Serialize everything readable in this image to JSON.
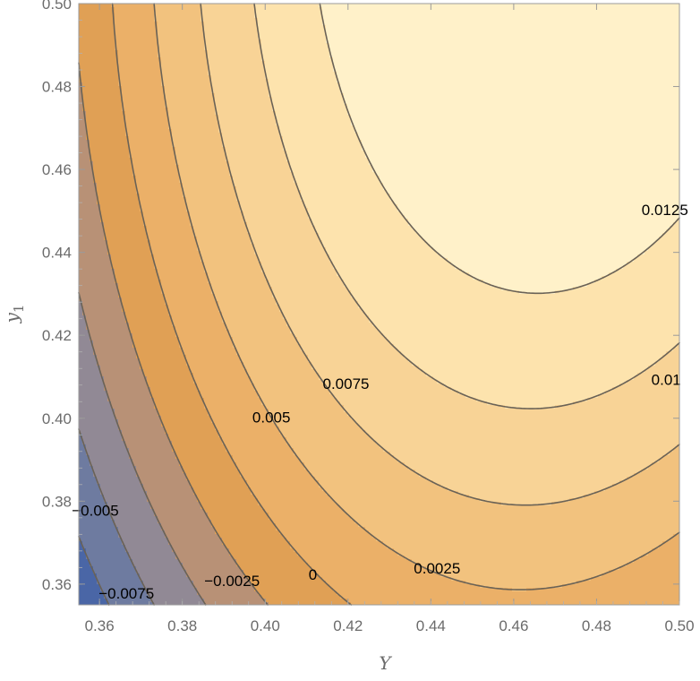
{
  "chart_data": {
    "type": "contour",
    "xlabel": "Y",
    "ylabel_base": "y",
    "ylabel_sub": "1",
    "xlim": [
      0.355,
      0.5
    ],
    "ylim": [
      0.355,
      0.5
    ],
    "x_ticks": [
      {
        "value": 0.36,
        "label": "0.36"
      },
      {
        "value": 0.38,
        "label": "0.38"
      },
      {
        "value": 0.4,
        "label": "0.40"
      },
      {
        "value": 0.42,
        "label": "0.42"
      },
      {
        "value": 0.44,
        "label": "0.44"
      },
      {
        "value": 0.46,
        "label": "0.46"
      },
      {
        "value": 0.48,
        "label": "0.48"
      },
      {
        "value": 0.5,
        "label": "0.50"
      }
    ],
    "y_ticks": [
      {
        "value": 0.36,
        "label": "0.36"
      },
      {
        "value": 0.38,
        "label": "0.38"
      },
      {
        "value": 0.4,
        "label": "0.40"
      },
      {
        "value": 0.42,
        "label": "0.42"
      },
      {
        "value": 0.44,
        "label": "0.44"
      },
      {
        "value": 0.46,
        "label": "0.46"
      },
      {
        "value": 0.48,
        "label": "0.48"
      },
      {
        "value": 0.5,
        "label": "0.50"
      }
    ],
    "contour_levels": [
      {
        "value": -0.0075,
        "label": "−0.0075",
        "label_at": [
          0.3665,
          0.3575
        ],
        "band_color": "#4a66a6"
      },
      {
        "value": -0.005,
        "label": "−0.005",
        "label_at": [
          0.359,
          0.3775
        ],
        "band_color": "#6e7ba0"
      },
      {
        "value": -0.0025,
        "label": "−0.0025",
        "label_at": [
          0.392,
          0.3605
        ],
        "band_color": "#918995"
      },
      {
        "value": 0,
        "label": "0",
        "label_at": [
          0.4115,
          0.362
        ],
        "band_color": "#b89176"
      },
      {
        "value": 0.0025,
        "label": "0.0025",
        "label_at": [
          0.4415,
          0.3635
        ],
        "band_color": "#e0a055"
      },
      {
        "value": 0.005,
        "label": "0.005",
        "label_at": [
          0.4015,
          0.4
        ],
        "band_color": "#ebb068"
      },
      {
        "value": 0.0075,
        "label": "0.0075",
        "label_at": [
          0.4195,
          0.408
        ],
        "band_color": "#f2c27e"
      },
      {
        "value": 0.01,
        "label": "0.01",
        "label_at": [
          0.4968,
          0.409
        ],
        "band_color": "#f8d396"
      },
      {
        "value": 0.0125,
        "label": "0.0125",
        "label_at": [
          0.4965,
          0.45
        ],
        "band_color": "#fde3ad"
      }
    ],
    "max_band_color": "#fff1c9",
    "contour_line_color": "#6a6256",
    "surface_anchor_points": [
      {
        "x": 0.355,
        "y": 0.355,
        "value": -0.0095
      },
      {
        "x": 0.3545,
        "y": 0.4325,
        "value": -0.0025
      },
      {
        "x": 0.355,
        "y": 0.5,
        "value": 0.0003
      },
      {
        "x": 0.4,
        "y": 0.4,
        "value": 0.005
      },
      {
        "x": 0.41,
        "y": 0.41,
        "value": 0.0075
      },
      {
        "x": 0.425,
        "y": 0.425,
        "value": 0.01
      },
      {
        "x": 0.445,
        "y": 0.445,
        "value": 0.0125
      },
      {
        "x": 0.5,
        "y": 0.4985,
        "value": 0.0154
      },
      {
        "x": 0.5,
        "y": 0.355,
        "value": 0.0027
      }
    ]
  }
}
